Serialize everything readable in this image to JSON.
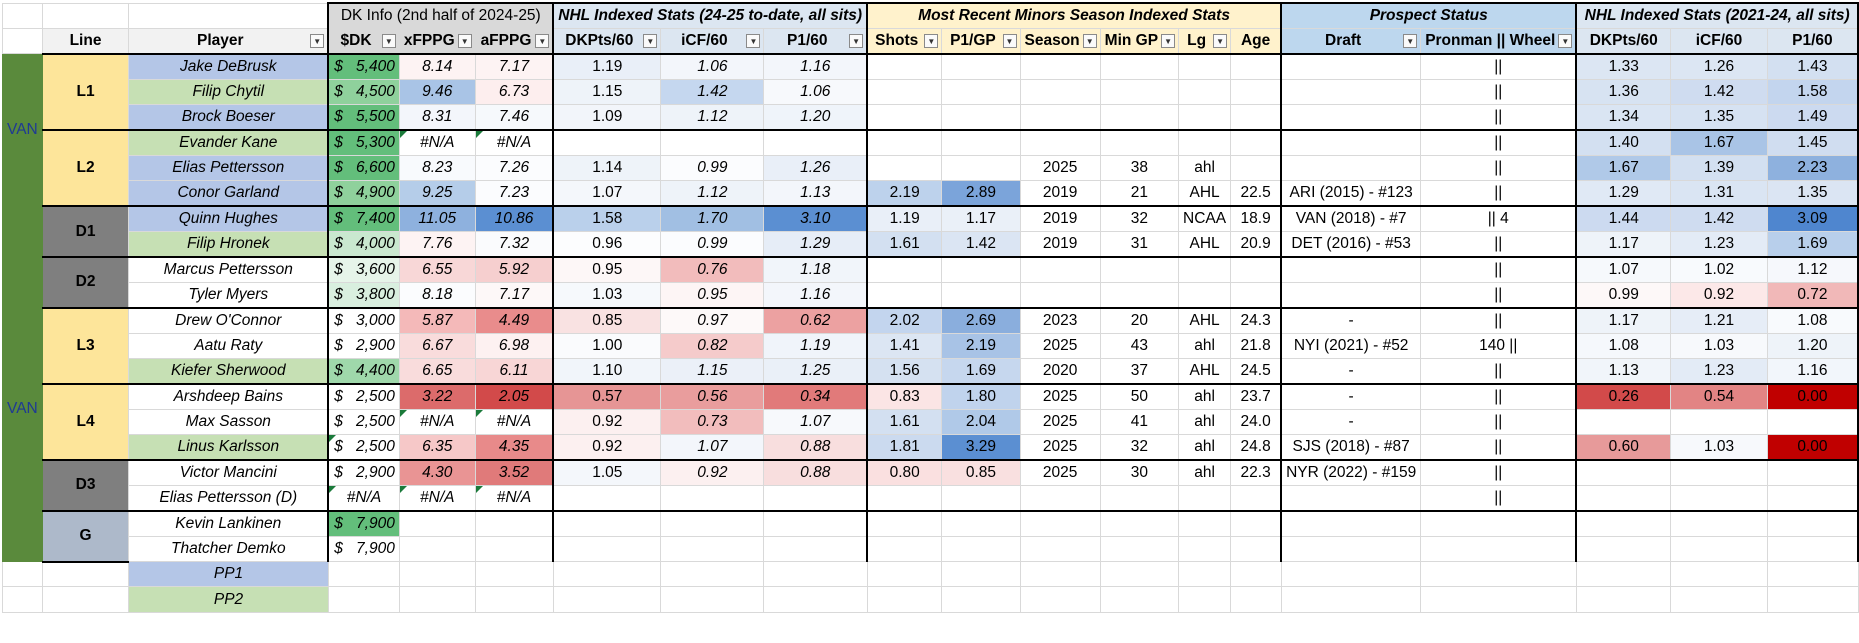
{
  "colors": {
    "team_green": "#5a8a3c",
    "line_yellow": "#fde59a",
    "defense_gray": "#7f7f7f",
    "goalie_blue": "#adb9ca",
    "forward_blue": "#b4c6e7",
    "player_green": "#c6e0b4",
    "dk_green": "#63be7b",
    "header_gray": "#d9d9d9",
    "header_blue": "#dce6f1",
    "header_yellow": "#fff2cc",
    "prospect_blue": "#bdd7ee"
  },
  "header_groups": {
    "dk_info": "DK Info (2nd half of 2024-25)",
    "nhl_current": "NHL Indexed Stats (24-25 to-date, all sits)",
    "minors": "Most Recent Minors Season Indexed Stats",
    "prospect": "Prospect Status",
    "nhl_history": "NHL Indexed Stats (2021-24, all sits)"
  },
  "columns": {
    "line": "Line",
    "player": "Player",
    "dk": "$DK",
    "xfppg": "xFPPG",
    "afppg": "aFPPG",
    "dkpts60": "DKPts/60",
    "icf60": "iCF/60",
    "p160": "P1/60",
    "shots": "Shots",
    "p1gp": "P1/GP",
    "season": "Season",
    "mingp": "Min GP",
    "lg": "Lg",
    "age": "Age",
    "draft": "Draft",
    "pronman": "Pronman || Wheel",
    "h_dkpts60": "DKPts/60",
    "h_icf60": "iCF/60",
    "h_p160": "P1/60"
  },
  "filter_icon": "chevron-down-icon",
  "team_blocks": [
    {
      "label": "VAN",
      "rows": 6
    },
    {
      "label": "",
      "rows": 4
    },
    {
      "label": "VAN",
      "rows": 8
    },
    {
      "label": "",
      "rows": 2
    }
  ],
  "line_groups": [
    {
      "label": "L1",
      "type": "forward",
      "rows": 3
    },
    {
      "label": "L2",
      "type": "forward",
      "rows": 3
    },
    {
      "label": "D1",
      "type": "defense",
      "rows": 2
    },
    {
      "label": "D2",
      "type": "defense",
      "rows": 2
    },
    {
      "label": "L3",
      "type": "forward",
      "rows": 3
    },
    {
      "label": "L4",
      "type": "forward",
      "rows": 3
    },
    {
      "label": "D3",
      "type": "defense",
      "rows": 2
    },
    {
      "label": "G",
      "type": "goalie",
      "rows": 2
    }
  ],
  "currency_symbol": "$",
  "rows": [
    {
      "player": "Jake DeBrusk",
      "pc": "#b4c6e7",
      "dk": "5,400",
      "dkc": "#63be7b",
      "xf": "8.14",
      "xfc": "#fdf3f3",
      "af": "7.17",
      "afc": "#fdf3f3",
      "dp": "1.19",
      "dpc": "#e9eff8",
      "ic": "1.06",
      "icc": "#f3f6fb",
      "p1": "1.16",
      "p1c": "#f3f6fb",
      "sh": "",
      "shc": "",
      "pg": "",
      "pgc": "",
      "se": "",
      "mg": "",
      "lg": "",
      "ag": "",
      "dr": "",
      "pr": "||",
      "hd": "1.33",
      "hdc": "#dce6f3",
      "hi": "1.26",
      "hic": "#dce6f3",
      "hp": "1.43",
      "hpc": "#d3e0f1",
      "tri": [
        false,
        false,
        false
      ]
    },
    {
      "player": "Filip Chytil",
      "pc": "#c6e0b4",
      "dk": "4,500",
      "dkc": "#8fd19c",
      "xf": "9.46",
      "xfc": "#a9c4e6",
      "af": "6.73",
      "afc": "#fdeeee",
      "dp": "1.15",
      "dpc": "#eef3f9",
      "ic": "1.42",
      "icc": "#c5d7ef",
      "p1": "1.06",
      "p1c": "#f7f9fc",
      "sh": "",
      "shc": "",
      "pg": "",
      "pgc": "",
      "se": "",
      "mg": "",
      "lg": "",
      "ag": "",
      "dr": "",
      "pr": "||",
      "hd": "1.36",
      "hdc": "#d7e3f2",
      "hi": "1.42",
      "hic": "#cfdcf0",
      "hp": "1.58",
      "hpc": "#c3d5ee",
      "tri": [
        false,
        false,
        false
      ]
    },
    {
      "player": "Brock Boeser",
      "pc": "#b4c6e7",
      "dk": "5,500",
      "dkc": "#63be7b",
      "xf": "8.31",
      "xfc": "#f3f6fb",
      "af": "7.46",
      "afc": "#f6f9fc",
      "dp": "1.09",
      "dpc": "#f2f5fa",
      "ic": "1.12",
      "icc": "#eef3f9",
      "p1": "1.20",
      "p1c": "#eff4fa",
      "sh": "",
      "shc": "",
      "pg": "",
      "pgc": "",
      "se": "",
      "mg": "",
      "lg": "",
      "ag": "",
      "dr": "",
      "pr": "||",
      "hd": "1.34",
      "hdc": "#dae5f3",
      "hi": "1.35",
      "hic": "#d6e2f2",
      "hp": "1.49",
      "hpc": "#ccdaf0",
      "tri": [
        false,
        false,
        false
      ]
    },
    {
      "player": "Evander Kane",
      "pc": "#c6e0b4",
      "dk": "5,300",
      "dkc": "#63be7b",
      "xf": "#N/A",
      "xfc": "#ffffff",
      "af": "#N/A",
      "afc": "#ffffff",
      "dp": "",
      "dpc": "",
      "ic": "",
      "icc": "",
      "p1": "",
      "p1c": "",
      "sh": "",
      "shc": "",
      "pg": "",
      "pgc": "",
      "se": "",
      "mg": "",
      "lg": "",
      "ag": "",
      "dr": "",
      "pr": "||",
      "hd": "1.40",
      "hdc": "#d3e0f1",
      "hi": "1.67",
      "hic": "#a9c4e6",
      "hp": "1.45",
      "hpc": "#d0ddf0",
      "tri": [
        false,
        true,
        true
      ]
    },
    {
      "player": "Elias Pettersson",
      "pc": "#b4c6e7",
      "dk": "6,600",
      "dkc": "#63be7b",
      "xf": "8.23",
      "xfc": "#f8fafd",
      "af": "7.26",
      "afc": "#fbfcfe",
      "dp": "1.14",
      "dpc": "#eef3f9",
      "ic": "0.99",
      "icc": "#fbfcfe",
      "p1": "1.26",
      "p1c": "#e9eff8",
      "sh": "",
      "shc": "",
      "pg": "",
      "pgc": "",
      "se": "2025",
      "mg": "38",
      "lg": "ahl",
      "ag": "",
      "dr": "",
      "pr": "||",
      "hd": "1.67",
      "hdc": "#b0c9e8",
      "hi": "1.39",
      "hic": "#d3e0f1",
      "hp": "2.23",
      "hpc": "#8eb1de",
      "tri": [
        false,
        false,
        false
      ]
    },
    {
      "player": "Conor Garland",
      "pc": "#b4c6e7",
      "dk": "4,900",
      "dkc": "#8fd19c",
      "xf": "9.25",
      "xfc": "#b5cde9",
      "af": "7.23",
      "afc": "#fbfcfe",
      "dp": "1.07",
      "dpc": "#f4f7fb",
      "ic": "1.12",
      "icc": "#eef3f9",
      "p1": "1.13",
      "p1c": "#f3f6fb",
      "sh": "2.19",
      "shc": "#bdd2ec",
      "pg": "2.89",
      "pgc": "#7ba4da",
      "se": "2019",
      "mg": "21",
      "lg": "AHL",
      "ag": "22.5",
      "dr": "ARI (2015) - #123",
      "pr": "||",
      "hd": "1.29",
      "hdc": "#e0e9f5",
      "hi": "1.31",
      "hic": "#dae5f3",
      "hp": "1.35",
      "hpc": "#dbe5f3",
      "tri": [
        false,
        false,
        false
      ]
    },
    {
      "player": "Quinn Hughes",
      "pc": "#b4c6e7",
      "dk": "7,400",
      "dkc": "#63be7b",
      "xf": "11.05",
      "xfc": "#8eb1de",
      "af": "10.86",
      "afc": "#5b8fd2",
      "dp": "1.58",
      "dpc": "#bad0eb",
      "ic": "1.70",
      "icc": "#a1bfe3",
      "p1": "3.10",
      "p1c": "#5b8fd2",
      "sh": "1.19",
      "shc": "#e9eff8",
      "pg": "1.17",
      "pgc": "#eaf0f8",
      "se": "2019",
      "mg": "32",
      "lg": "NCAA",
      "ag": "18.9",
      "dr": "VAN (2018) - #7",
      "pr": "|| 4",
      "hd": "1.44",
      "hdc": "#ccdaf0",
      "hi": "1.42",
      "hic": "#cfdcf0",
      "hp": "3.09",
      "hpc": "#4f86cf",
      "tri": [
        false,
        false,
        false
      ]
    },
    {
      "player": "Filip Hronek",
      "pc": "#c6e0b4",
      "dk": "4,000",
      "dkc": "#c9e8cf",
      "xf": "7.76",
      "xfc": "#fdf3f3",
      "af": "7.32",
      "afc": "#fafbfd",
      "dp": "0.96",
      "dpc": "#fcfdfe",
      "ic": "0.99",
      "icc": "#fbfcfe",
      "p1": "1.29",
      "p1c": "#e6edf7",
      "sh": "1.61",
      "shc": "#d3e0f1",
      "pg": "1.42",
      "pgc": "#dbe5f3",
      "se": "2019",
      "mg": "31",
      "lg": "AHL",
      "ag": "20.9",
      "dr": "DET (2016) - #53",
      "pr": "||",
      "hd": "1.17",
      "hdc": "#eef3f9",
      "hi": "1.23",
      "hic": "#e3ebf6",
      "hp": "1.69",
      "hpc": "#b8cfeb",
      "tri": [
        false,
        false,
        false
      ]
    },
    {
      "player": "Marcus Pettersson",
      "pc": "#ffffff",
      "dk": "3,600",
      "dkc": "#e6f4e9",
      "xf": "6.55",
      "xfc": "#f8d7d7",
      "af": "5.92",
      "afc": "#f6cfcf",
      "dp": "0.95",
      "dpc": "#fdf7f7",
      "ic": "0.76",
      "icc": "#f2bcbc",
      "p1": "1.18",
      "p1c": "#f1f5fa",
      "sh": "",
      "shc": "",
      "pg": "",
      "pgc": "",
      "se": "",
      "mg": "",
      "lg": "",
      "ag": "",
      "dr": "",
      "pr": "||",
      "hd": "1.07",
      "hdc": "#f6f9fc",
      "hi": "1.02",
      "hic": "#f8fafd",
      "hp": "1.12",
      "hpc": "#f6f8fc",
      "tri": [
        false,
        false,
        false
      ]
    },
    {
      "player": "Tyler Myers",
      "pc": "#ffffff",
      "dk": "3,800",
      "dkc": "#d9efdf",
      "xf": "8.18",
      "xfc": "#fbfcfe",
      "af": "7.17",
      "afc": "#fdf8f8",
      "dp": "1.03",
      "dpc": "#f6f9fc",
      "ic": "0.95",
      "icc": "#fdf5f5",
      "p1": "1.16",
      "p1c": "#f3f6fb",
      "sh": "",
      "shc": "",
      "pg": "",
      "pgc": "",
      "se": "",
      "mg": "",
      "lg": "",
      "ag": "",
      "dr": "",
      "pr": "||",
      "hd": "0.99",
      "hdc": "#fdf8f8",
      "hi": "0.92",
      "hic": "#fce8e8",
      "hp": "0.72",
      "hpc": "#f1b8b8",
      "tri": [
        false,
        false,
        false
      ]
    },
    {
      "player": "Drew O'Connor",
      "pc": "#ffffff",
      "dk": "3,000",
      "dkc": "#ffffff",
      "xf": "5.87",
      "xfc": "#f4b9b9",
      "af": "4.49",
      "afc": "#e98c8c",
      "dp": "0.85",
      "dpc": "#f9e2e2",
      "ic": "0.97",
      "icc": "#fdf9f9",
      "p1": "0.62",
      "p1c": "#eca1a1",
      "sh": "2.02",
      "shc": "#c3d5ee",
      "pg": "2.69",
      "pgc": "#8aaedd",
      "se": "2023",
      "mg": "20",
      "lg": "AHL",
      "ag": "24.3",
      "dr": "-",
      "pr": "||",
      "hd": "1.17",
      "hdc": "#eef3f9",
      "hi": "1.21",
      "hic": "#e6edf7",
      "hp": "1.08",
      "hpc": "#f8fafd",
      "tri": [
        false,
        false,
        false
      ]
    },
    {
      "player": "Aatu Raty",
      "pc": "#ffffff",
      "dk": "2,900",
      "dkc": "#ffffff",
      "xf": "6.67",
      "xfc": "#f9dcdc",
      "af": "6.98",
      "afc": "#fdf1f1",
      "dp": "1.00",
      "dpc": "#fafbfd",
      "ic": "0.82",
      "icc": "#f5cbcb",
      "p1": "1.19",
      "p1c": "#f0f4fa",
      "sh": "1.41",
      "shc": "#dce6f3",
      "pg": "2.19",
      "pgc": "#a8c3e6",
      "se": "2025",
      "mg": "43",
      "lg": "ahl",
      "ag": "21.8",
      "dr": "NYI (2021) - #52",
      "pr": "140 ||",
      "hd": "1.08",
      "hdc": "#f5f8fc",
      "hi": "1.03",
      "hic": "#f7f9fc",
      "hp": "1.20",
      "hpc": "#eef3f9",
      "tri": [
        false,
        false,
        false
      ]
    },
    {
      "player": "Kiefer Sherwood",
      "pc": "#c6e0b4",
      "dk": "4,400",
      "dkc": "#9fd8ab",
      "xf": "6.65",
      "xfc": "#f9dcdc",
      "af": "6.11",
      "afc": "#f8d6d6",
      "dp": "1.10",
      "dpc": "#f1f5fa",
      "ic": "1.15",
      "icc": "#ebf0f8",
      "p1": "1.25",
      "p1c": "#eaf0f8",
      "sh": "1.56",
      "shc": "#d5e1f1",
      "pg": "1.69",
      "pgc": "#c6d7ee",
      "se": "2020",
      "mg": "37",
      "lg": "AHL",
      "ag": "24.5",
      "dr": "-",
      "pr": "||",
      "hd": "1.13",
      "hdc": "#f1f5fa",
      "hi": "1.23",
      "hic": "#e3ebf6",
      "hp": "1.16",
      "hpc": "#f2f6fb",
      "tri": [
        false,
        false,
        false
      ]
    },
    {
      "player": "Arshdeep Bains",
      "pc": "#ffffff",
      "dk": "2,500",
      "dkc": "#ffffff",
      "xf": "3.22",
      "xfc": "#dc6b6b",
      "af": "2.05",
      "afc": "#d24a4a",
      "dp": "0.57",
      "dpc": "#e69595",
      "ic": "0.56",
      "icc": "#e99d9d",
      "p1": "0.34",
      "p1c": "#e17a7a",
      "sh": "0.83",
      "shc": "#fbe5e5",
      "pg": "1.80",
      "pgc": "#c0d3ed",
      "se": "2025",
      "mg": "50",
      "lg": "ahl",
      "ag": "23.7",
      "dr": "-",
      "pr": "||",
      "hd": "0.26",
      "hdc": "#d24a4a",
      "hi": "0.54",
      "hic": "#e28484",
      "hp": "0.00",
      "hpc": "#c00000",
      "tri": [
        false,
        false,
        false
      ]
    },
    {
      "player": "Max Sasson",
      "pc": "#ffffff",
      "dk": "2,500",
      "dkc": "#ffffff",
      "xf": "#N/A",
      "xfc": "#ffffff",
      "af": "#N/A",
      "afc": "#ffffff",
      "dp": "0.92",
      "dpc": "#fcf0f0",
      "ic": "0.73",
      "icc": "#f2bdbd",
      "p1": "1.07",
      "p1c": "#f7f9fc",
      "sh": "1.61",
      "shc": "#d3e0f1",
      "pg": "2.04",
      "pgc": "#b0c9e8",
      "se": "2025",
      "mg": "41",
      "lg": "ahl",
      "ag": "24.0",
      "dr": "-",
      "pr": "||",
      "hd": "",
      "hdc": "",
      "hi": "",
      "hic": "",
      "hp": "",
      "hpc": "",
      "tri": [
        false,
        true,
        true
      ]
    },
    {
      "player": "Linus Karlsson",
      "pc": "#c6e0b4",
      "dk": "2,500",
      "dkc": "#ffffff",
      "xf": "6.35",
      "xfc": "#f6c8c8",
      "af": "4.35",
      "afc": "#e88a8a",
      "dp": "0.92",
      "dpc": "#fcf0f0",
      "ic": "1.07",
      "icc": "#f3f6fb",
      "p1": "0.88",
      "p1c": "#f8dede",
      "sh": "1.81",
      "shc": "#cbdaef",
      "pg": "3.29",
      "pgc": "#5b8fd2",
      "se": "2025",
      "mg": "32",
      "lg": "ahl",
      "ag": "24.8",
      "dr": "SJS (2018) - #87",
      "pr": "||",
      "hd": "0.60",
      "hdc": "#e79a9a",
      "hi": "1.03",
      "hic": "#f7f9fc",
      "hp": "0.00",
      "hpc": "#c00000",
      "tri": [
        true,
        false,
        false
      ]
    },
    {
      "player": "Victor Mancini",
      "pc": "#ffffff",
      "dk": "2,900",
      "dkc": "#ffffff",
      "xf": "4.30",
      "xfc": "#e99494",
      "af": "3.52",
      "afc": "#e07a7a",
      "dp": "1.05",
      "dpc": "#f4f7fb",
      "ic": "0.92",
      "icc": "#fcf0f0",
      "p1": "0.88",
      "p1c": "#f8dede",
      "sh": "0.80",
      "shc": "#fae0e0",
      "pg": "0.85",
      "pgc": "#f9e0e0",
      "se": "2025",
      "mg": "30",
      "lg": "ahl",
      "ag": "22.3",
      "dr": "NYR (2022) - #159",
      "pr": "||",
      "hd": "",
      "hdc": "",
      "hi": "",
      "hic": "",
      "hp": "",
      "hpc": "",
      "tri": [
        false,
        false,
        false
      ]
    },
    {
      "player": "Elias Pettersson (D)",
      "pc": "#ffffff",
      "dk": "#N/A",
      "dkc": "#ffffff",
      "xf": "#N/A",
      "xfc": "#ffffff",
      "af": "#N/A",
      "afc": "#ffffff",
      "dp": "",
      "dpc": "",
      "ic": "",
      "icc": "",
      "p1": "",
      "p1c": "",
      "sh": "",
      "shc": "",
      "pg": "",
      "pgc": "",
      "se": "",
      "mg": "",
      "lg": "",
      "ag": "",
      "dr": "",
      "pr": "||",
      "hd": "",
      "hdc": "",
      "hi": "",
      "hic": "",
      "hp": "",
      "hpc": "",
      "tri": [
        true,
        true,
        true
      ]
    },
    {
      "player": "Kevin Lankinen",
      "pc": "#ffffff",
      "dk": "7,900",
      "dkc": "#63be7b",
      "xf": "",
      "xfc": "",
      "af": "",
      "afc": "",
      "dp": "",
      "dpc": "",
      "ic": "",
      "icc": "",
      "p1": "",
      "p1c": "",
      "sh": "",
      "shc": "",
      "pg": "",
      "pgc": "",
      "se": "",
      "mg": "",
      "lg": "",
      "ag": "",
      "dr": "",
      "pr": "",
      "hd": "",
      "hdc": "",
      "hi": "",
      "hic": "",
      "hp": "",
      "hpc": "",
      "tri": [
        false,
        false,
        false
      ]
    },
    {
      "player": "Thatcher Demko",
      "pc": "#ffffff",
      "dk": "7,900",
      "dkc": "#ffffff",
      "xf": "",
      "xfc": "",
      "af": "",
      "afc": "",
      "dp": "",
      "dpc": "",
      "ic": "",
      "icc": "",
      "p1": "",
      "p1c": "",
      "sh": "",
      "shc": "",
      "pg": "",
      "pgc": "",
      "se": "",
      "mg": "",
      "lg": "",
      "ag": "",
      "dr": "",
      "pr": "",
      "hd": "",
      "hdc": "",
      "hi": "",
      "hic": "",
      "hp": "",
      "hpc": "",
      "tri": [
        false,
        false,
        false
      ]
    }
  ],
  "pp_rows": [
    {
      "label": "PP1",
      "color": "#b4c6e7"
    },
    {
      "label": "PP2",
      "color": "#c6e0b4"
    }
  ]
}
